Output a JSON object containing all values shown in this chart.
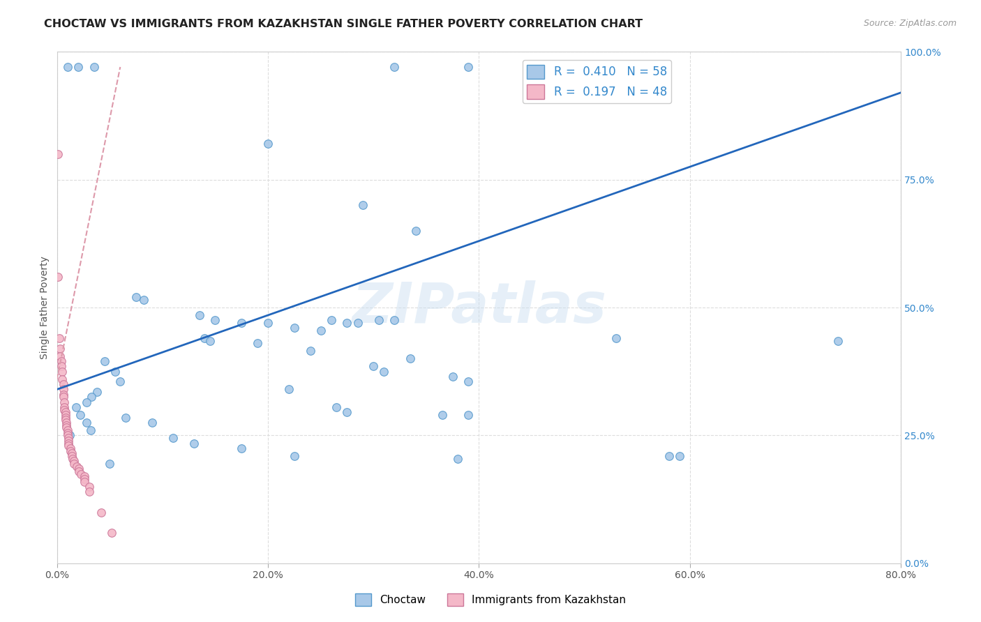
{
  "title": "CHOCTAW VS IMMIGRANTS FROM KAZAKHSTAN SINGLE FATHER POVERTY CORRELATION CHART",
  "source": "Source: ZipAtlas.com",
  "xlabel_ticks": [
    "0.0%",
    "20.0%",
    "40.0%",
    "60.0%",
    "80.0%"
  ],
  "ylabel_ticks_right": [
    "0.0%",
    "25.0%",
    "50.0%",
    "75.0%",
    "100.0%"
  ],
  "ylabel_label": "Single Father Poverty",
  "legend_bottom": [
    "Choctaw",
    "Immigrants from Kazakhstan"
  ],
  "legend_top_text": [
    "R =  0.410   N = 58",
    "R =  0.197   N = 48"
  ],
  "blue_color": "#a8c8e8",
  "blue_edge": "#5599cc",
  "pink_color": "#f4b8c8",
  "pink_edge": "#cc7799",
  "line_blue": "#2266bb",
  "line_pink": "#dd99aa",
  "tick_color_right": "#3388cc",
  "blue_scatter": [
    [
      1.0,
      97.0
    ],
    [
      2.0,
      97.0
    ],
    [
      3.5,
      97.0
    ],
    [
      32.0,
      97.0
    ],
    [
      39.0,
      97.0
    ],
    [
      20.0,
      82.0
    ],
    [
      29.0,
      70.0
    ],
    [
      34.0,
      65.0
    ],
    [
      7.5,
      52.0
    ],
    [
      8.2,
      51.5
    ],
    [
      13.5,
      48.5
    ],
    [
      15.0,
      47.5
    ],
    [
      17.5,
      47.0
    ],
    [
      20.0,
      47.0
    ],
    [
      26.0,
      47.5
    ],
    [
      27.5,
      47.0
    ],
    [
      28.5,
      47.0
    ],
    [
      30.5,
      47.5
    ],
    [
      32.0,
      47.5
    ],
    [
      22.5,
      46.0
    ],
    [
      25.0,
      45.5
    ],
    [
      14.0,
      44.0
    ],
    [
      14.5,
      43.5
    ],
    [
      19.0,
      43.0
    ],
    [
      24.0,
      41.5
    ],
    [
      33.5,
      40.0
    ],
    [
      30.0,
      38.5
    ],
    [
      31.0,
      37.5
    ],
    [
      37.5,
      36.5
    ],
    [
      39.0,
      35.5
    ],
    [
      22.0,
      34.0
    ],
    [
      26.5,
      30.5
    ],
    [
      27.5,
      29.5
    ],
    [
      36.5,
      29.0
    ],
    [
      39.0,
      29.0
    ],
    [
      6.5,
      28.5
    ],
    [
      9.0,
      27.5
    ],
    [
      11.0,
      24.5
    ],
    [
      13.0,
      23.5
    ],
    [
      17.5,
      22.5
    ],
    [
      22.5,
      21.0
    ],
    [
      5.0,
      19.5
    ],
    [
      38.0,
      20.5
    ],
    [
      53.0,
      44.0
    ],
    [
      74.0,
      43.5
    ],
    [
      58.0,
      21.0
    ],
    [
      59.0,
      21.0
    ],
    [
      4.5,
      39.5
    ],
    [
      5.5,
      37.5
    ],
    [
      6.0,
      35.5
    ],
    [
      3.8,
      33.5
    ],
    [
      3.3,
      32.5
    ],
    [
      2.8,
      31.5
    ],
    [
      1.8,
      30.5
    ],
    [
      2.2,
      29.0
    ],
    [
      2.8,
      27.5
    ],
    [
      3.2,
      26.0
    ],
    [
      1.2,
      25.0
    ]
  ],
  "pink_scatter": [
    [
      0.1,
      80.0
    ],
    [
      0.1,
      56.0
    ],
    [
      0.2,
      44.0
    ],
    [
      0.3,
      42.0
    ],
    [
      0.3,
      40.5
    ],
    [
      0.4,
      39.5
    ],
    [
      0.4,
      38.5
    ],
    [
      0.5,
      37.5
    ],
    [
      0.5,
      36.0
    ],
    [
      0.6,
      35.0
    ],
    [
      0.6,
      34.0
    ],
    [
      0.6,
      33.0
    ],
    [
      0.6,
      32.5
    ],
    [
      0.7,
      31.5
    ],
    [
      0.7,
      30.5
    ],
    [
      0.7,
      30.0
    ],
    [
      0.8,
      29.5
    ],
    [
      0.8,
      29.0
    ],
    [
      0.8,
      28.5
    ],
    [
      0.8,
      28.0
    ],
    [
      0.9,
      27.5
    ],
    [
      0.9,
      27.0
    ],
    [
      0.9,
      26.5
    ],
    [
      1.0,
      26.0
    ],
    [
      1.0,
      25.5
    ],
    [
      1.0,
      25.0
    ],
    [
      1.1,
      24.5
    ],
    [
      1.1,
      24.0
    ],
    [
      1.1,
      23.5
    ],
    [
      1.1,
      23.0
    ],
    [
      1.3,
      22.5
    ],
    [
      1.3,
      22.0
    ],
    [
      1.4,
      21.5
    ],
    [
      1.4,
      21.0
    ],
    [
      1.5,
      20.5
    ],
    [
      1.6,
      20.0
    ],
    [
      1.6,
      19.5
    ],
    [
      1.9,
      19.0
    ],
    [
      2.1,
      18.5
    ],
    [
      2.1,
      18.0
    ],
    [
      2.3,
      17.5
    ],
    [
      2.6,
      17.0
    ],
    [
      2.6,
      16.5
    ],
    [
      2.6,
      16.0
    ],
    [
      3.1,
      15.0
    ],
    [
      3.1,
      14.0
    ],
    [
      4.2,
      10.0
    ],
    [
      5.2,
      6.0
    ]
  ],
  "xlim": [
    0.0,
    80.0
  ],
  "ylim": [
    0.0,
    100.0
  ],
  "blue_line_x": [
    0.0,
    80.0
  ],
  "blue_line_y": [
    34.0,
    92.0
  ],
  "pink_line_x": [
    0.0,
    6.0
  ],
  "pink_line_y": [
    36.0,
    97.0
  ],
  "watermark": "ZIPatlas",
  "title_fontsize": 11.5,
  "axis_label_fontsize": 10,
  "tick_fontsize": 10
}
